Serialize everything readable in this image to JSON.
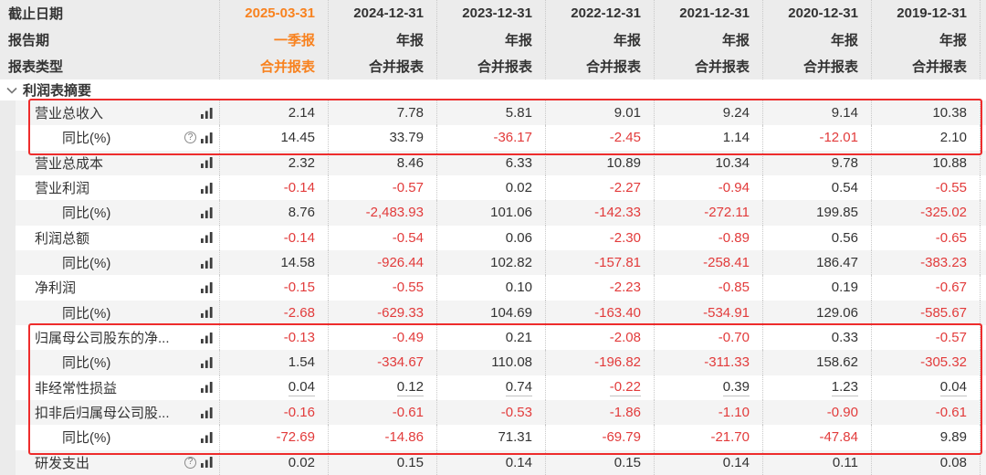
{
  "table": {
    "header_rows": [
      {
        "label": "截止日期",
        "values": [
          "2025-03-31",
          "2024-12-31",
          "2023-12-31",
          "2022-12-31",
          "2021-12-31",
          "2020-12-31",
          "2019-12-31"
        ]
      },
      {
        "label": "报告期",
        "values": [
          "一季报",
          "年报",
          "年报",
          "年报",
          "年报",
          "年报",
          "年报"
        ]
      },
      {
        "label": "报表类型",
        "values": [
          "合并报表",
          "合并报表",
          "合并报表",
          "合并报表",
          "合并报表",
          "合并报表",
          "合并报表"
        ]
      }
    ],
    "section": {
      "label": "利润表摘要"
    },
    "rows": [
      {
        "label": "营业总收入",
        "indent": 1,
        "help": false,
        "underline": false,
        "values": [
          "2.14",
          "7.78",
          "5.81",
          "9.01",
          "9.24",
          "9.14",
          "10.38"
        ]
      },
      {
        "label": "同比(%)",
        "indent": 2,
        "help": true,
        "underline": false,
        "values": [
          "14.45",
          "33.79",
          "-36.17",
          "-2.45",
          "1.14",
          "-12.01",
          "2.10"
        ]
      },
      {
        "label": "营业总成本",
        "indent": 1,
        "help": false,
        "underline": false,
        "values": [
          "2.32",
          "8.46",
          "6.33",
          "10.89",
          "10.34",
          "9.78",
          "10.88"
        ]
      },
      {
        "label": "营业利润",
        "indent": 1,
        "help": false,
        "underline": false,
        "values": [
          "-0.14",
          "-0.57",
          "0.02",
          "-2.27",
          "-0.94",
          "0.54",
          "-0.55"
        ]
      },
      {
        "label": "同比(%)",
        "indent": 2,
        "help": false,
        "underline": false,
        "values": [
          "8.76",
          "-2,483.93",
          "101.06",
          "-142.33",
          "-272.11",
          "199.85",
          "-325.02"
        ]
      },
      {
        "label": "利润总额",
        "indent": 1,
        "help": false,
        "underline": false,
        "values": [
          "-0.14",
          "-0.54",
          "0.06",
          "-2.30",
          "-0.89",
          "0.56",
          "-0.65"
        ]
      },
      {
        "label": "同比(%)",
        "indent": 2,
        "help": false,
        "underline": false,
        "values": [
          "14.58",
          "-926.44",
          "102.82",
          "-157.81",
          "-258.41",
          "186.47",
          "-383.23"
        ]
      },
      {
        "label": "净利润",
        "indent": 1,
        "help": false,
        "underline": false,
        "values": [
          "-0.15",
          "-0.55",
          "0.10",
          "-2.23",
          "-0.85",
          "0.19",
          "-0.67"
        ]
      },
      {
        "label": "同比(%)",
        "indent": 2,
        "help": false,
        "underline": false,
        "values": [
          "-2.68",
          "-629.33",
          "104.69",
          "-163.40",
          "-534.91",
          "129.06",
          "-585.67"
        ]
      },
      {
        "label": "归属母公司股东的净...",
        "indent": 1,
        "help": false,
        "underline": false,
        "values": [
          "-0.13",
          "-0.49",
          "0.21",
          "-2.08",
          "-0.70",
          "0.33",
          "-0.57"
        ]
      },
      {
        "label": "同比(%)",
        "indent": 2,
        "help": false,
        "underline": false,
        "values": [
          "1.54",
          "-334.67",
          "110.08",
          "-196.82",
          "-311.33",
          "158.62",
          "-305.32"
        ]
      },
      {
        "label": "非经常性损益",
        "indent": 1,
        "help": false,
        "underline": true,
        "values": [
          "0.04",
          "0.12",
          "0.74",
          "-0.22",
          "0.39",
          "1.23",
          "0.04"
        ]
      },
      {
        "label": "扣非后归属母公司股...",
        "indent": 1,
        "help": false,
        "underline": false,
        "values": [
          "-0.16",
          "-0.61",
          "-0.53",
          "-1.86",
          "-1.10",
          "-0.90",
          "-0.61"
        ]
      },
      {
        "label": "同比(%)",
        "indent": 2,
        "help": false,
        "underline": false,
        "values": [
          "-72.69",
          "-14.86",
          "71.31",
          "-69.79",
          "-21.70",
          "-47.84",
          "9.89"
        ]
      },
      {
        "label": "研发支出",
        "indent": 1,
        "help": true,
        "underline": false,
        "values": [
          "0.02",
          "0.15",
          "0.14",
          "0.15",
          "0.14",
          "0.11",
          "0.08"
        ]
      }
    ],
    "icons": {
      "help_glyph": "?",
      "chart": "bar-chart-icon",
      "chevron": "chevron-down-icon"
    },
    "colors": {
      "accent_orange": "#f8821f",
      "negative_red": "#e23b3b",
      "highlight_red": "#ee2c2c",
      "header_bg": "#ececec",
      "stripe_bg": "#f4f4f4"
    }
  }
}
